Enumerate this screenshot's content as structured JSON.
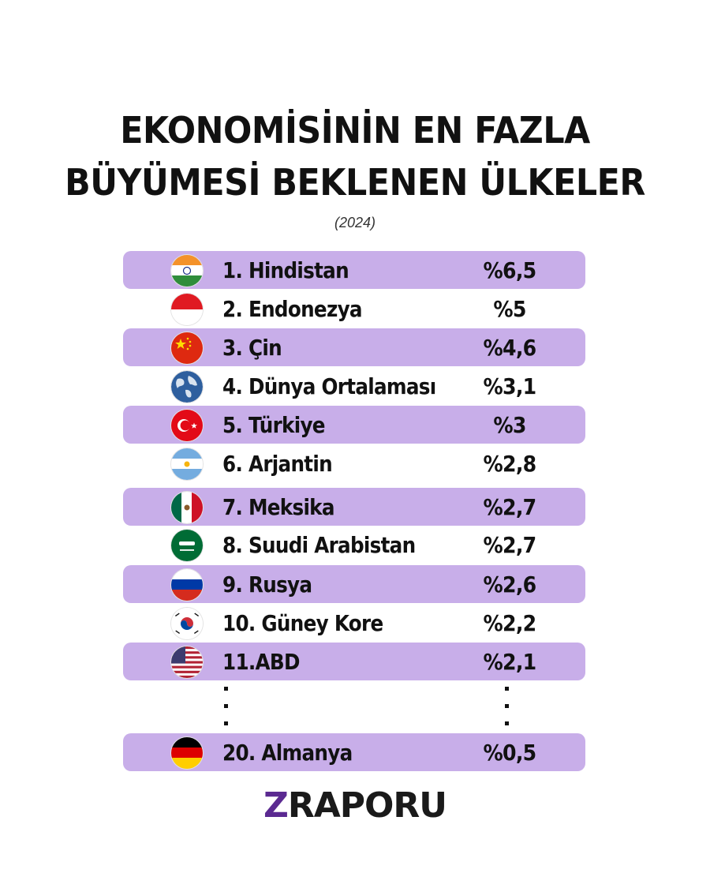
{
  "title": {
    "line1": "EKONOMİSİNİN EN FAZLA",
    "line2": "BÜYÜMESİ BEKLENEN ÜLKELER",
    "year": "(2024)"
  },
  "rows": [
    {
      "name": "1. Hindistan",
      "value": "%6,5",
      "flag": "india-flag-icon"
    },
    {
      "name": "2. Endonezya",
      "value": "%5",
      "flag": "indonesia-flag-icon"
    },
    {
      "name": "3. Çin",
      "value": "%4,6",
      "flag": "china-flag-icon"
    },
    {
      "name": "4. Dünya Ortalaması",
      "value": "%3,1",
      "flag": "globe-icon"
    },
    {
      "name": "5. Türkiye",
      "value": "%3",
      "flag": "turkey-flag-icon"
    },
    {
      "name": "6. Arjantin",
      "value": "%2,8",
      "flag": "argentina-flag-icon"
    },
    {
      "name": "7. Meksika",
      "value": "%2,7",
      "flag": "mexico-flag-icon"
    },
    {
      "name": "8. Suudi Arabistan",
      "value": "%2,7",
      "flag": "saudi-arabia-flag-icon"
    },
    {
      "name": "9. Rusya",
      "value": "%2,6",
      "flag": "russia-flag-icon"
    },
    {
      "name": "10. Güney Kore",
      "value": "%2,2",
      "flag": "south-korea-flag-icon"
    },
    {
      "name": "11.ABD",
      "value": "%2,1",
      "flag": "usa-flag-icon"
    },
    {
      "name": "20. Almanya",
      "value": "%0,5",
      "flag": "germany-flag-icon"
    }
  ],
  "logo": {
    "z": "Z",
    "rest": "RAPORU"
  },
  "colors": {
    "row_highlight": "#c8aee9",
    "logo_z": "#5b2a91"
  }
}
